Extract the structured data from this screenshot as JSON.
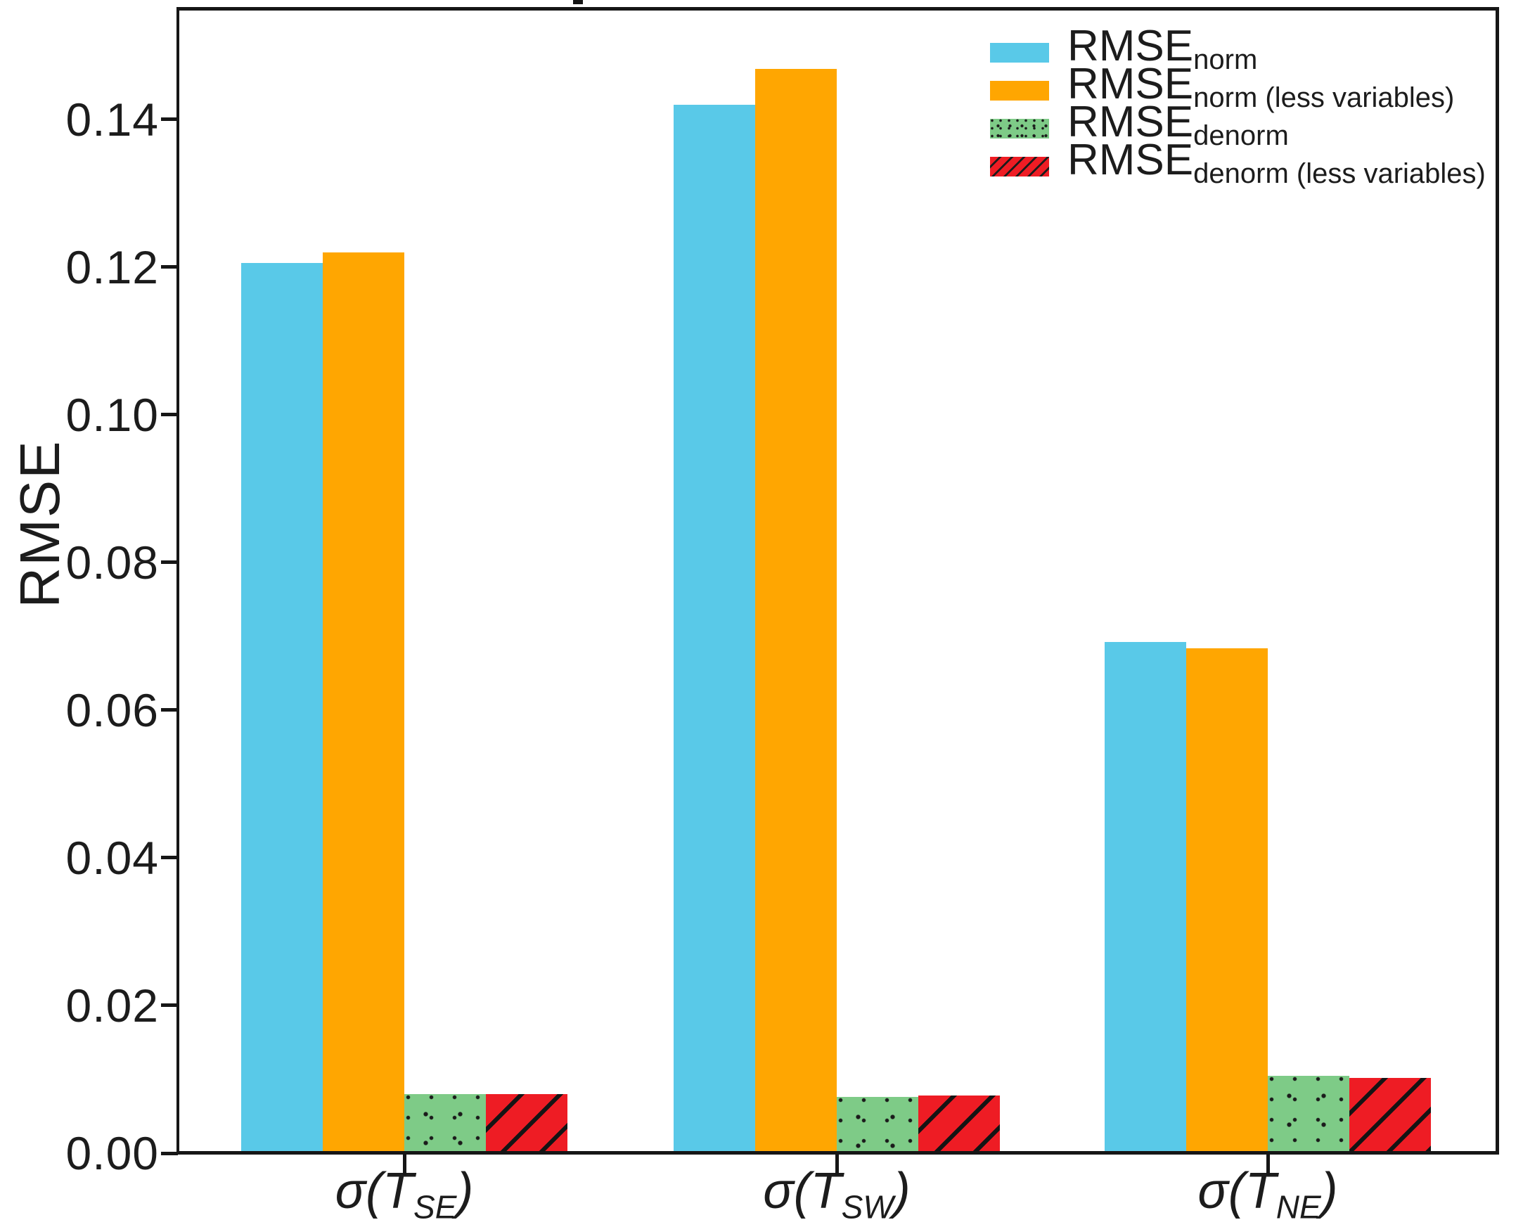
{
  "chart_data": {
    "type": "bar",
    "title": "",
    "xlabel": "",
    "ylabel": "RMSE",
    "ylim": [
      0,
      0.155
    ],
    "yticks": [
      0.0,
      0.02,
      0.04,
      0.06,
      0.08,
      0.1,
      0.12,
      0.14
    ],
    "ytick_labels": [
      "0.00",
      "0.02",
      "0.04",
      "0.06",
      "0.08",
      "0.10",
      "0.12",
      "0.14"
    ],
    "grid": false,
    "legend_position": "upper right",
    "background_color": "#ffffff",
    "axis_color": "#161616",
    "categories": [
      {
        "label": "σ(T_SE)",
        "prefix": "σ(T",
        "sub": "SE",
        "suffix": ")"
      },
      {
        "label": "σ(T_SW)",
        "prefix": "σ(T",
        "sub": "SW",
        "suffix": ")"
      },
      {
        "label": "σ(T_NE)",
        "prefix": "σ(T",
        "sub": "NE",
        "suffix": ")"
      }
    ],
    "series": [
      {
        "name": "RMSE_norm",
        "legend_main": "RMSE",
        "legend_sub": "norm",
        "color": "#59c9e8",
        "pattern": "solid",
        "values": [
          0.1205,
          0.142,
          0.0692
        ]
      },
      {
        "name": "RMSE_norm (less variables)",
        "legend_main": "RMSE",
        "legend_sub": "norm (less variables)",
        "color": "#ffa601",
        "pattern": "solid",
        "values": [
          0.122,
          0.1468,
          0.0684
        ]
      },
      {
        "name": "RMSE_denorm",
        "legend_main": "RMSE",
        "legend_sub": "denorm",
        "color": "#7ecb87",
        "pattern": "dots",
        "pattern_color": "#1b1b1b",
        "values": [
          0.008,
          0.0076,
          0.0105
        ]
      },
      {
        "name": "RMSE_denorm (less variables)",
        "legend_main": "RMSE",
        "legend_sub": "denorm (less variables)",
        "color": "#ee1c24",
        "pattern": "hatch",
        "pattern_color": "#141414",
        "values": [
          0.008,
          0.0078,
          0.0102
        ]
      }
    ]
  }
}
